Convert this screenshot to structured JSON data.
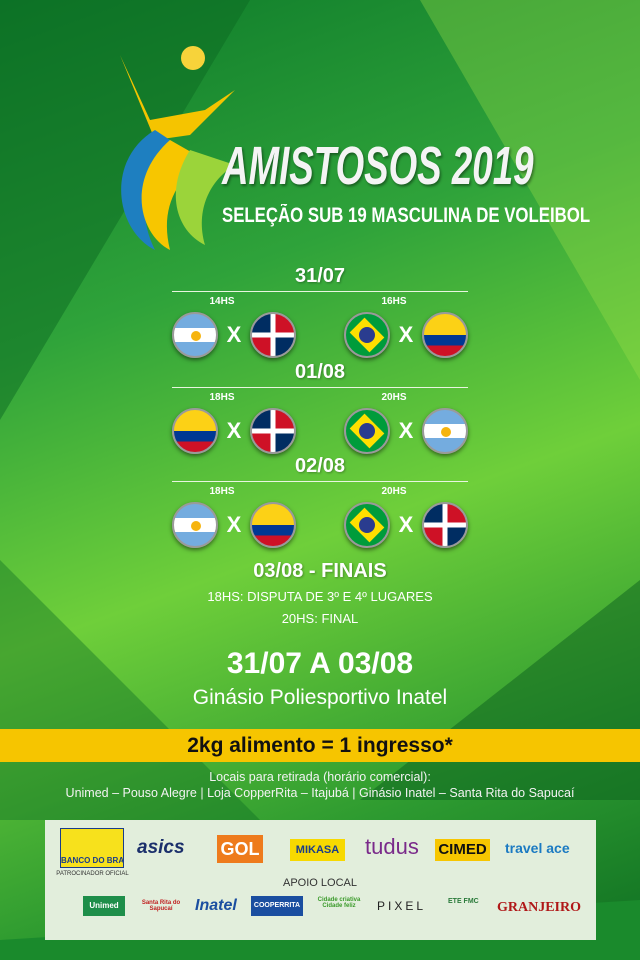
{
  "header": {
    "title": "AMISTOSOS 2019",
    "subtitle": "SELEÇÃO SUB 19 MASCULINA DE VOLEIBOL"
  },
  "days": [
    {
      "date": "31/07",
      "matches": [
        {
          "time": "14HS",
          "home": "Argentina",
          "away": "República Dominicana"
        },
        {
          "time": "16HS",
          "home": "Brasil",
          "away": "Colômbia"
        }
      ]
    },
    {
      "date": "01/08",
      "matches": [
        {
          "time": "18HS",
          "home": "Colômbia",
          "away": "República Dominicana"
        },
        {
          "time": "20HS",
          "home": "Brasil",
          "away": "Argentina"
        }
      ]
    },
    {
      "date": "02/08",
      "matches": [
        {
          "time": "18HS",
          "home": "Argentina",
          "away": "Colômbia"
        },
        {
          "time": "20HS",
          "home": "Brasil",
          "away": "República Dominicana"
        }
      ]
    }
  ],
  "vs": "X",
  "finals": {
    "title": "03/08 - FINAIS",
    "line1": "18HS: DISPUTA DE 3º E 4º LUGARES",
    "line2": "20HS: FINAL"
  },
  "event": {
    "dates": "31/07 A 03/08",
    "venue": "Ginásio Poliesportivo Inatel"
  },
  "ticket": "2kg alimento = 1 ingresso*",
  "pickup": {
    "label": "Locais para retirada (horário comercial):",
    "places": "Unimed – Pouso Alegre | Loja CopperRita – Itajubá | Ginásio Inatel – Santa Rita do Sapucaí"
  },
  "sponsors": {
    "main": "BANCO DO BRASIL",
    "main_caption": "PATROCINADOR OFICIAL",
    "row1": [
      "asics",
      "GOL",
      "MIKASA",
      "tudus",
      "CIMED",
      "travel ace"
    ],
    "local_label": "APOIO LOCAL",
    "row2": [
      "Unimed",
      "Santa Rita do Sapucaí",
      "Inatel",
      "COOPERRITA",
      "Cidade criativa Cidade feliz",
      "PIXEL",
      "ETE FMC",
      "GRANJEIRO"
    ]
  },
  "colors": {
    "band": "#f6c500",
    "green": "#2fa33a",
    "sponsor_bg": "#e2eedc"
  }
}
